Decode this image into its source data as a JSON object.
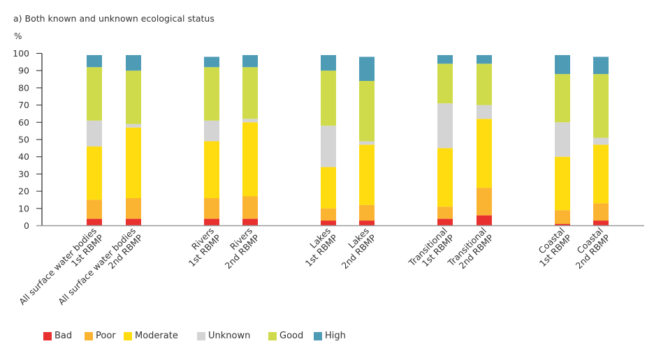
{
  "chart_data": {
    "type": "bar",
    "stacked": true,
    "title": "a) Both known and unknown ecological status",
    "ylabel": "%",
    "xlabel": "",
    "ylim": [
      0,
      100
    ],
    "yticks": [
      0,
      10,
      20,
      30,
      40,
      50,
      60,
      70,
      80,
      90,
      100
    ],
    "grid": false,
    "legend_position": "bottom-left",
    "categories": [
      [
        "All surface water bodies",
        "1st RBMP"
      ],
      [
        "All surface water bodies",
        "2nd RBMP"
      ],
      [
        "Rivers",
        "1st RBMP"
      ],
      [
        "Rivers",
        "2nd RBMP"
      ],
      [
        "Lakes",
        "1st RBMP"
      ],
      [
        "Lakes",
        "2nd RBMP"
      ],
      [
        "Transitional",
        "1st RBMP"
      ],
      [
        "Transitional",
        "2nd RBMP"
      ],
      [
        "Coastal",
        "1st RBMP"
      ],
      [
        "Coastal",
        "2nd RBMP"
      ]
    ],
    "groups": [
      [
        0,
        1
      ],
      [
        2,
        3
      ],
      [
        4,
        5
      ],
      [
        6,
        7
      ],
      [
        8,
        9
      ]
    ],
    "series": [
      {
        "name": "Bad",
        "color": "#e8312f",
        "values": [
          4,
          4,
          4,
          4,
          3,
          3,
          4,
          6,
          1,
          3
        ]
      },
      {
        "name": "Poor",
        "color": "#fbb332",
        "values": [
          11,
          12,
          12,
          13,
          7,
          9,
          7,
          16,
          8,
          10
        ]
      },
      {
        "name": "Moderate",
        "color": "#ffdc0f",
        "values": [
          31,
          41,
          33,
          43,
          24,
          35,
          34,
          40,
          31,
          34
        ]
      },
      {
        "name": "Unknown",
        "color": "#d4d4d4",
        "values": [
          15,
          2,
          12,
          2,
          24,
          2,
          26,
          8,
          20,
          4
        ]
      },
      {
        "name": "Good",
        "color": "#cfdb4a",
        "values": [
          31,
          31,
          31,
          30,
          32,
          35,
          23,
          24,
          28,
          37
        ]
      },
      {
        "name": "High",
        "color": "#4e9bb6",
        "values": [
          7,
          9,
          6,
          7,
          9,
          14,
          5,
          5,
          11,
          10
        ]
      }
    ]
  }
}
